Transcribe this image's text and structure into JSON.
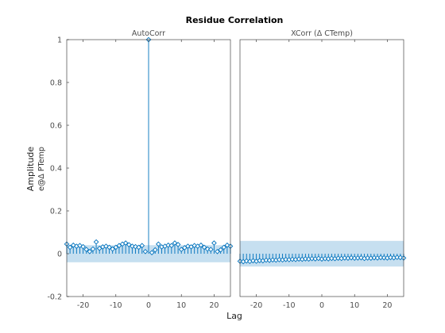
{
  "figure": {
    "title": "Residue Correlation",
    "xlabel": "Lag",
    "ylabel": "Amplitude",
    "ylabel_sub": "e@Δ PTemp"
  },
  "chart_data": [
    {
      "type": "stem",
      "title": "AutoCorr",
      "xlim": [
        -25,
        25
      ],
      "ylim": [
        -0.2,
        1
      ],
      "xticks": [
        -20,
        -10,
        0,
        10,
        20
      ],
      "yticks": [
        -0.2,
        0,
        0.2,
        0.4,
        0.6,
        0.8,
        1
      ],
      "xtick_labels": [
        "-20",
        "-10",
        "0",
        "10",
        "20"
      ],
      "ytick_labels": [
        "-0.2",
        "0",
        "0.2",
        "0.4",
        "0.6",
        "0.8",
        "1"
      ],
      "confidence_band": [
        -0.04,
        0.04
      ],
      "marker": "diamond",
      "color": "#0072bd",
      "band_color": "#c6dff0",
      "x": [
        -25,
        -24,
        -23,
        -22,
        -21,
        -20,
        -19,
        -18,
        -17,
        -16,
        -15,
        -14,
        -13,
        -12,
        -11,
        -10,
        -9,
        -8,
        -7,
        -6,
        -5,
        -4,
        -3,
        -2,
        -1,
        0,
        1,
        2,
        3,
        4,
        5,
        6,
        7,
        8,
        9,
        10,
        11,
        12,
        13,
        14,
        15,
        16,
        17,
        18,
        19,
        20,
        21,
        22,
        23,
        24,
        25
      ],
      "y": [
        0.045,
        0.03,
        0.04,
        0.035,
        0.038,
        0.033,
        0.02,
        0.01,
        0.022,
        0.055,
        0.025,
        0.032,
        0.035,
        0.03,
        0.022,
        0.03,
        0.038,
        0.045,
        0.05,
        0.042,
        0.035,
        0.033,
        0.03,
        0.038,
        0.01,
        1.0,
        0.005,
        0.018,
        0.045,
        0.032,
        0.035,
        0.04,
        0.038,
        0.05,
        0.043,
        0.02,
        0.028,
        0.035,
        0.032,
        0.038,
        0.035,
        0.04,
        0.03,
        0.022,
        0.02,
        0.05,
        0.01,
        0.018,
        0.03,
        0.04,
        0.035
      ]
    },
    {
      "type": "stem",
      "title": "XCorr (Δ CTemp)",
      "xlim": [
        -25,
        25
      ],
      "ylim": [
        -0.2,
        1
      ],
      "xticks": [
        -20,
        -10,
        0,
        10,
        20
      ],
      "xtick_labels": [
        "-20",
        "-10",
        "0",
        "10",
        "20"
      ],
      "confidence_band": [
        -0.06,
        0.06
      ],
      "marker": "diamond",
      "color": "#0072bd",
      "band_color": "#c6dff0",
      "x": [
        -25,
        -24,
        -23,
        -22,
        -21,
        -20,
        -19,
        -18,
        -17,
        -16,
        -15,
        -14,
        -13,
        -12,
        -11,
        -10,
        -9,
        -8,
        -7,
        -6,
        -5,
        -4,
        -3,
        -2,
        -1,
        0,
        1,
        2,
        3,
        4,
        5,
        6,
        7,
        8,
        9,
        10,
        11,
        12,
        13,
        14,
        15,
        16,
        17,
        18,
        19,
        20,
        21,
        22,
        23,
        24,
        25
      ],
      "y": [
        -0.035,
        -0.037,
        -0.034,
        -0.036,
        -0.033,
        -0.035,
        -0.032,
        -0.033,
        -0.03,
        -0.031,
        -0.029,
        -0.03,
        -0.028,
        -0.029,
        -0.027,
        -0.028,
        -0.026,
        -0.027,
        -0.025,
        -0.026,
        -0.024,
        -0.025,
        -0.023,
        -0.024,
        -0.022,
        -0.025,
        -0.023,
        -0.024,
        -0.022,
        -0.023,
        -0.021,
        -0.022,
        -0.02,
        -0.021,
        -0.019,
        -0.021,
        -0.02,
        -0.019,
        -0.022,
        -0.02,
        -0.021,
        -0.019,
        -0.02,
        -0.018,
        -0.019,
        -0.02,
        -0.018,
        -0.019,
        -0.017,
        -0.018,
        -0.02
      ]
    }
  ]
}
